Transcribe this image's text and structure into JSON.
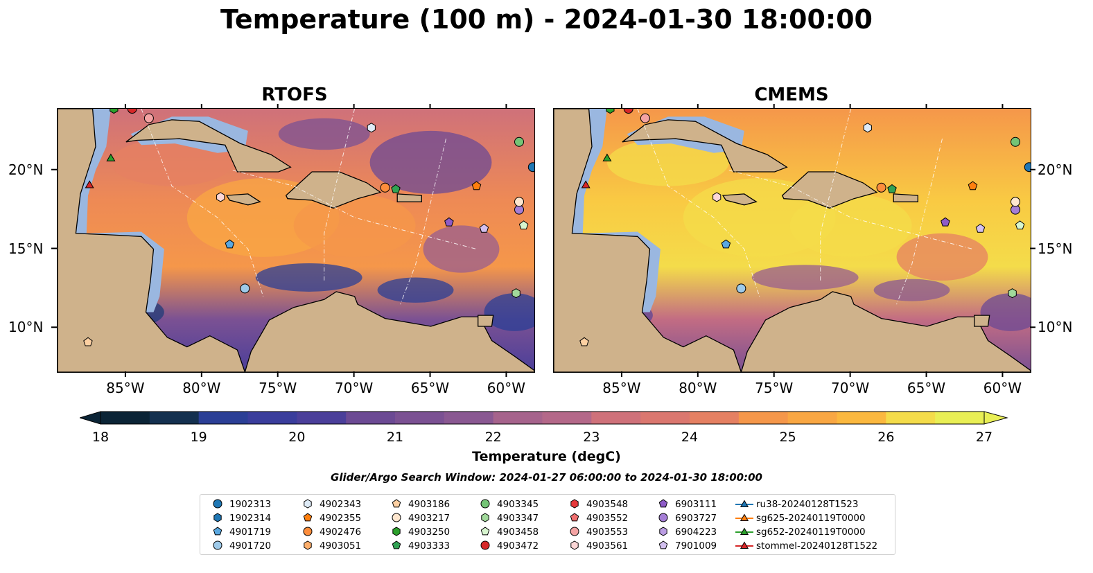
{
  "title": "Temperature (100 m) - 2024-01-30 18:00:00",
  "panels": [
    {
      "title": "RTOFS",
      "model": "rtofs"
    },
    {
      "title": "CMEMS",
      "model": "cmems"
    }
  ],
  "axes": {
    "lat_labels": [
      "20°N",
      "15°N",
      "10°N"
    ],
    "lon_labels": [
      "85°W",
      "80°W",
      "75°W",
      "70°W",
      "65°W",
      "60°W"
    ],
    "lat_values": [
      20,
      15,
      10
    ],
    "lon_values": [
      -85,
      -80,
      -75,
      -70,
      -65,
      -60
    ],
    "lon_range": [
      -89.5,
      -58.2
    ],
    "lat_range": [
      7.2,
      23.9
    ]
  },
  "colorbar": {
    "label": "Temperature (degC)",
    "ticks": [
      "18",
      "19",
      "20",
      "21",
      "22",
      "23",
      "24",
      "25",
      "26",
      "27"
    ],
    "range": [
      18,
      27
    ],
    "step": 0.5,
    "extend": "both",
    "colors": [
      "#0b2436",
      "#14304f",
      "#1f3b78",
      "#2b3f96",
      "#3a3d9c",
      "#4b3f9a",
      "#5c4496",
      "#6c4a94",
      "#7b5193",
      "#8a5892",
      "#985e8f",
      "#a6638c",
      "#b46889",
      "#c26c83",
      "#cf717a",
      "#db776f",
      "#e58062",
      "#ee8a55",
      "#f5974a",
      "#f9a743",
      "#fbb83f",
      "#f9ca43",
      "#f4dc4a",
      "#e9ef55"
    ]
  },
  "search_window": "Glider/Argo Search Window: 2024-01-27 06:00:00 to 2024-01-30 18:00:00",
  "legend": [
    {
      "label": "1902313",
      "shape": "circle",
      "color": "#1f77b4"
    },
    {
      "label": "1902314",
      "shape": "hexagon",
      "color": "#1f77b4"
    },
    {
      "label": "4901719",
      "shape": "pentagon",
      "color": "#5aa8e0"
    },
    {
      "label": "4901720",
      "shape": "circle",
      "color": "#9ecae9"
    },
    {
      "label": "4902343",
      "shape": "hexagon",
      "color": "#deebf7"
    },
    {
      "label": "4902355",
      "shape": "pentagon",
      "color": "#ff7f0e"
    },
    {
      "label": "4902476",
      "shape": "circle",
      "color": "#fd8d3c"
    },
    {
      "label": "4903051",
      "shape": "hexagon",
      "color": "#fdae6b"
    },
    {
      "label": "4903186",
      "shape": "pentagon",
      "color": "#fdd0a2"
    },
    {
      "label": "4903217",
      "shape": "circle",
      "color": "#fee6ce"
    },
    {
      "label": "4903250",
      "shape": "hexagon",
      "color": "#2ca02c"
    },
    {
      "label": "4903333",
      "shape": "pentagon",
      "color": "#31a354"
    },
    {
      "label": "4903345",
      "shape": "circle",
      "color": "#74c476"
    },
    {
      "label": "4903347",
      "shape": "hexagon",
      "color": "#a1d99b"
    },
    {
      "label": "4903458",
      "shape": "pentagon",
      "color": "#d7f5cf"
    },
    {
      "label": "4903472",
      "shape": "circle",
      "color": "#d62728"
    },
    {
      "label": "4903548",
      "shape": "hexagon",
      "color": "#e6383a"
    },
    {
      "label": "4903552",
      "shape": "pentagon",
      "color": "#f07070"
    },
    {
      "label": "4903553",
      "shape": "circle",
      "color": "#f4a3a3"
    },
    {
      "label": "4903561",
      "shape": "hexagon",
      "color": "#fcd7d7"
    },
    {
      "label": "6903111",
      "shape": "pentagon",
      "color": "#8e5cc7"
    },
    {
      "label": "6903727",
      "shape": "circle",
      "color": "#a57ed6"
    },
    {
      "label": "6904223",
      "shape": "hexagon",
      "color": "#bb9de3"
    },
    {
      "label": "7901009",
      "shape": "pentagon",
      "color": "#d3c0ef"
    },
    {
      "label": "ru38-20240128T1523",
      "shape": "triangle-line",
      "color": "#1f77b4"
    },
    {
      "label": "sg625-20240119T0000",
      "shape": "triangle-line",
      "color": "#ff7f0e"
    },
    {
      "label": "sg652-20240119T0000",
      "shape": "triangle-line",
      "color": "#2ca02c"
    },
    {
      "label": "stommel-20240128T1522",
      "shape": "triangle-line",
      "color": "#d62728"
    }
  ],
  "markers": [
    {
      "id": "1902313",
      "lon": -58.3,
      "lat": 20.2
    },
    {
      "id": "6903727",
      "lon": -59.2,
      "lat": 17.5
    },
    {
      "id": "4903345",
      "lon": -59.2,
      "lat": 21.8
    },
    {
      "id": "4903217",
      "lon": -59.2,
      "lat": 18.0
    },
    {
      "id": "4903458",
      "lon": -58.9,
      "lat": 16.5
    },
    {
      "id": "4903347",
      "lon": -59.4,
      "lat": 12.2
    },
    {
      "id": "6903111",
      "lon": -63.8,
      "lat": 16.7
    },
    {
      "id": "4902355",
      "lon": -62.0,
      "lat": 19.0
    },
    {
      "id": "7901009",
      "lon": -61.5,
      "lat": 16.3
    },
    {
      "id": "4902476",
      "lon": -68.0,
      "lat": 18.9
    },
    {
      "id": "4903333",
      "lon": -67.3,
      "lat": 18.8
    },
    {
      "id": "4902343",
      "lon": -68.9,
      "lat": 22.7
    },
    {
      "id": "4903553",
      "lon": -83.5,
      "lat": 23.3
    },
    {
      "id": "4903561",
      "lon": -78.8,
      "lat": 18.3
    },
    {
      "id": "4901719",
      "lon": -78.2,
      "lat": 15.3
    },
    {
      "id": "4901720",
      "lon": -77.2,
      "lat": 12.5
    },
    {
      "id": "4903186",
      "lon": -87.5,
      "lat": 9.1
    },
    {
      "id": "sg652-20240119T0000",
      "lon": -86.0,
      "lat": 20.8
    },
    {
      "id": "stommel-20240128T1522",
      "lon": -87.4,
      "lat": 19.1
    },
    {
      "id": "4903250",
      "lon": -85.8,
      "lat": 23.9
    },
    {
      "id": "4903472",
      "lon": -84.6,
      "lat": 23.9
    }
  ]
}
